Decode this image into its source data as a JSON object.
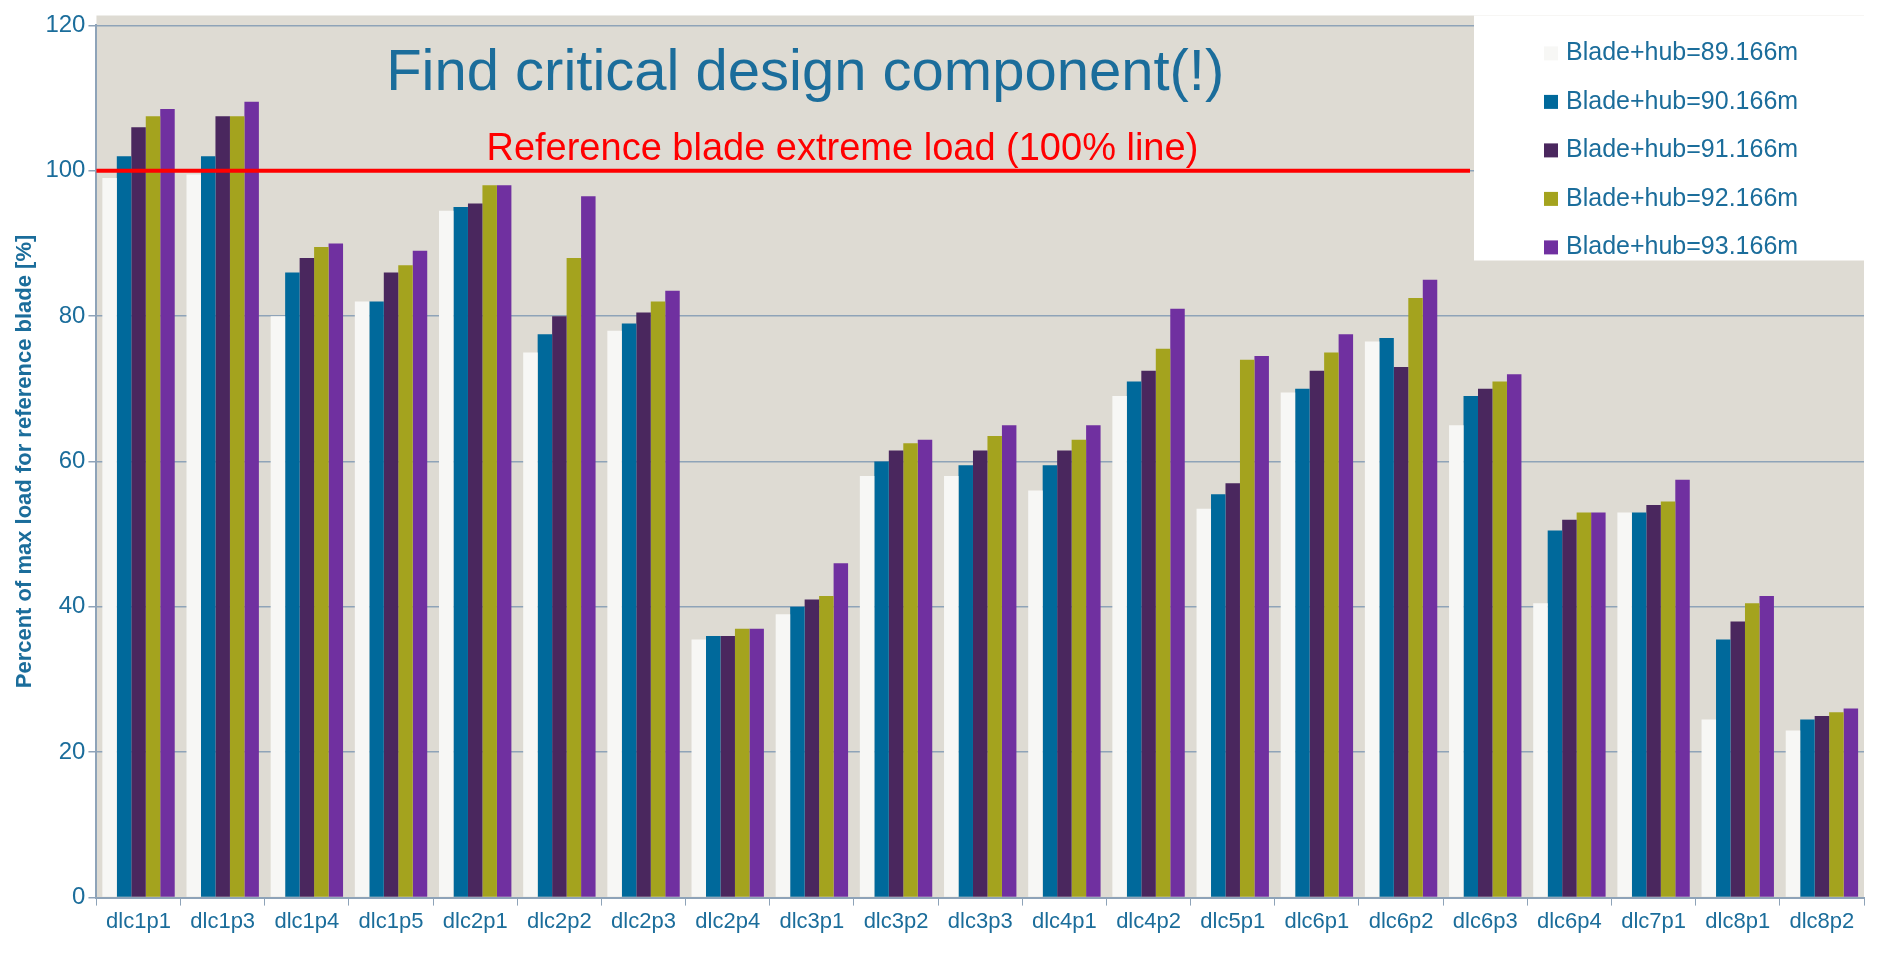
{
  "chart_data": {
    "type": "bar",
    "title": "Find critical design component(!)",
    "ylabel": "Percent of max load for reference blade [%]",
    "categories": [
      "dlc1p1",
      "dlc1p3",
      "dlc1p4",
      "dlc1p5",
      "dlc2p1",
      "dlc2p2",
      "dlc2p3",
      "dlc2p4",
      "dlc3p1",
      "dlc3p2",
      "dlc3p3",
      "dlc4p1",
      "dlc4p2",
      "dlc5p1",
      "dlc6p1",
      "dlc6p2",
      "dlc6p3",
      "dlc6p4",
      "dlc7p1",
      "dlc8p1",
      "dlc8p2"
    ],
    "series": [
      {
        "name": "Blade+hub=89.166m",
        "color": "#f7f7f5",
        "values": [
          99,
          99.5,
          80,
          82,
          94.5,
          75,
          78,
          35.5,
          39,
          58,
          58,
          56,
          69,
          53.5,
          69.5,
          76.5,
          65,
          40.5,
          53,
          24.5,
          23
        ]
      },
      {
        "name": "Blade+hub=90.166m",
        "color": "#00699b",
        "values": [
          102,
          102,
          86,
          82,
          95,
          77.5,
          79,
          36,
          40,
          60,
          59.5,
          59.5,
          71,
          55.5,
          70,
          77,
          69,
          50.5,
          53,
          35.5,
          24.5
        ]
      },
      {
        "name": "Blade+hub=91.166m",
        "color": "#4a275e",
        "values": [
          106,
          107.5,
          88,
          86,
          95.5,
          80,
          80.5,
          36,
          41,
          61.5,
          61.5,
          61.5,
          72.5,
          57,
          72.5,
          73,
          70,
          52,
          54,
          38,
          25
        ]
      },
      {
        "name": "Blade+hub=92.166m",
        "color": "#a4a31e",
        "values": [
          107.5,
          107.5,
          89.5,
          87,
          98,
          88,
          82,
          37,
          41.5,
          62.5,
          63.5,
          63,
          75.5,
          74,
          75,
          82.5,
          71,
          53,
          54.5,
          40.5,
          25.5
        ]
      },
      {
        "name": "Blade+hub=93.166m",
        "color": "#7030a0",
        "values": [
          108.5,
          109.5,
          90,
          89,
          98,
          96.5,
          83.5,
          37,
          46,
          63,
          65,
          65,
          81,
          74.5,
          77.5,
          85,
          72,
          53,
          57.5,
          41.5,
          26
        ]
      }
    ],
    "ylim": [
      0,
      120
    ],
    "yticks": [
      0,
      20,
      40,
      60,
      80,
      100,
      120
    ],
    "grid": "y",
    "legend": "top right",
    "ref_lines": [
      {
        "axis": "y",
        "value": 100,
        "label": "Reference blade extreme load (100% line)",
        "color": "#ff0000"
      }
    ]
  }
}
